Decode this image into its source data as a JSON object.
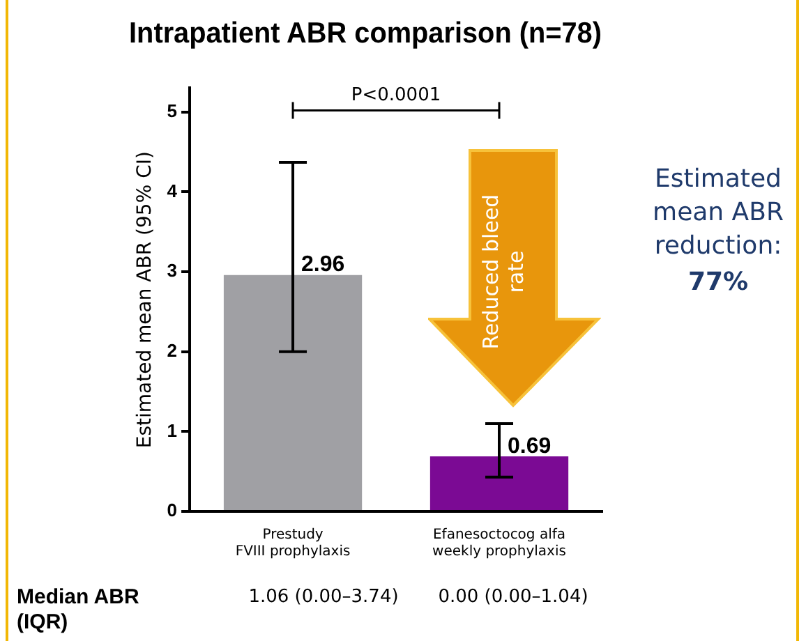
{
  "chart_data": {
    "type": "bar",
    "title": "Intrapatient ABR comparison (n=78)",
    "ylabel": "Estimated mean ABR (95% CI)",
    "categories": [
      "Prestudy\nFVIII prophylaxis",
      "Efanesoctocog alfa\nweekly prophylaxis"
    ],
    "values": [
      2.96,
      0.69
    ],
    "colors": [
      "#a0a0a4",
      "#7b0a94"
    ],
    "errors": [
      [
        2.0,
        4.37
      ],
      [
        0.43,
        1.1
      ]
    ],
    "data_labels": true,
    "ylim": [
      0,
      5.3
    ],
    "yticks": [
      0,
      1,
      2,
      3,
      4,
      5
    ],
    "grid": false,
    "legend": false,
    "annotations": [
      "P<0.0001",
      "Reduced bleed rate",
      "Estimated mean ABR reduction:",
      "77%",
      "Median ABR (IQR)",
      "1.06 (0.00–3.74)",
      "0.00 (0.00–1.04)"
    ]
  }
}
